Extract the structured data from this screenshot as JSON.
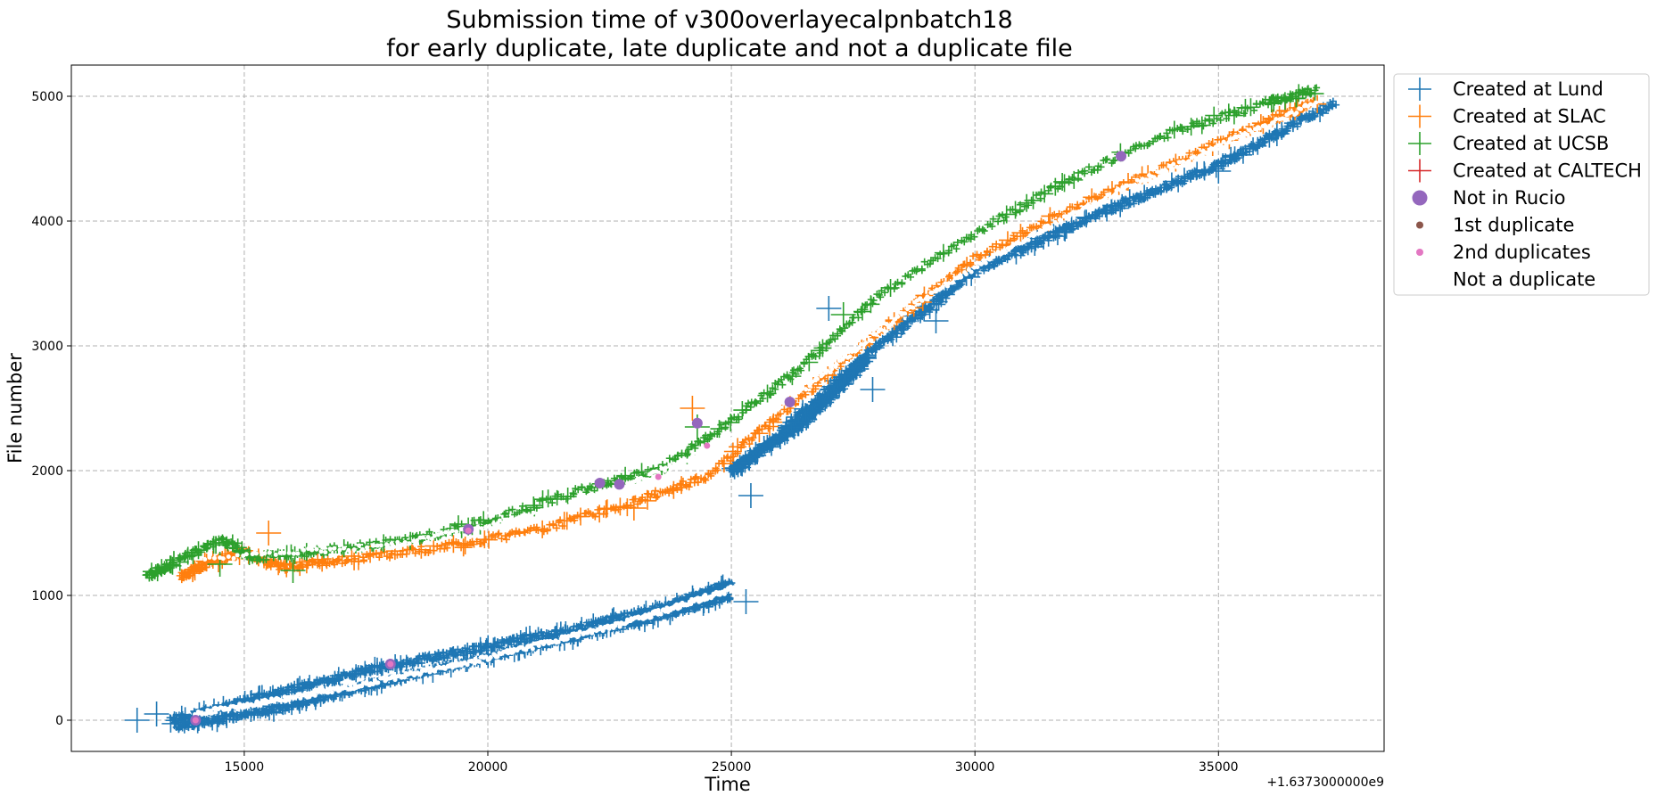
{
  "chart_data": {
    "type": "scatter",
    "title_lines": [
      "Submission time of v300overlayecalpnbatch18",
      "for early duplicate, late duplicate and not a duplicate file"
    ],
    "xlabel": "Time",
    "ylabel": "File number",
    "x_offset_label": "+1.6373000000e9",
    "xlim": [
      11450,
      38400
    ],
    "ylim": [
      -250,
      5250
    ],
    "x_ticks": [
      15000,
      20000,
      25000,
      30000,
      35000
    ],
    "y_ticks": [
      0,
      1000,
      2000,
      3000,
      4000,
      5000
    ],
    "grid": true,
    "legend_position": "outside-top-right",
    "series": [
      {
        "name": "Created at Lund",
        "marker": "plus",
        "color": "#1f77b4",
        "segments": [
          [
            [
              13500,
              0
            ],
            [
              15500,
              200
            ],
            [
              17500,
              400
            ],
            [
              19500,
              550
            ],
            [
              22000,
              750
            ],
            [
              24000,
              950
            ],
            [
              25000,
              1100
            ]
          ],
          [
            [
              13600,
              -50
            ],
            [
              15800,
              100
            ],
            [
              17800,
              300
            ],
            [
              20500,
              550
            ],
            [
              23000,
              780
            ],
            [
              25000,
              1000
            ]
          ],
          [
            [
              25000,
              2000
            ],
            [
              26500,
              2400
            ],
            [
              27800,
              2900
            ]
          ],
          [
            [
              26000,
              2300
            ],
            [
              28000,
              3000
            ],
            [
              30000,
              3600
            ],
            [
              32500,
              4050
            ],
            [
              35000,
              4450
            ],
            [
              37400,
              4950
            ]
          ]
        ],
        "outliers": [
          [
            12800,
            0
          ],
          [
            13200,
            50
          ],
          [
            25300,
            950
          ],
          [
            25400,
            1800
          ],
          [
            27000,
            3300
          ],
          [
            27900,
            2650
          ],
          [
            29200,
            3200
          ],
          [
            35000,
            4400
          ],
          [
            36200,
            4700
          ]
        ]
      },
      {
        "name": "Created at SLAC",
        "marker": "plus",
        "color": "#ff7f0e",
        "segments": [
          [
            [
              13700,
              1150
            ],
            [
              14200,
              1250
            ],
            [
              15000,
              1350
            ],
            [
              15700,
              1230
            ],
            [
              17000,
              1280
            ],
            [
              19000,
              1380
            ],
            [
              21000,
              1520
            ],
            [
              23000,
              1750
            ],
            [
              24500,
              1950
            ],
            [
              26000,
              2450
            ],
            [
              28000,
              3100
            ],
            [
              30000,
              3700
            ],
            [
              32000,
              4100
            ],
            [
              34000,
              4450
            ],
            [
              36000,
              4800
            ],
            [
              37000,
              4950
            ]
          ]
        ],
        "outliers": [
          [
            15500,
            1500
          ],
          [
            23000,
            1700
          ],
          [
            24200,
            2500
          ]
        ]
      },
      {
        "name": "Created at UCSB",
        "marker": "plus",
        "color": "#2ca02c",
        "segments": [
          [
            [
              13000,
              1150
            ],
            [
              13500,
              1250
            ],
            [
              14500,
              1450
            ],
            [
              15200,
              1300
            ],
            [
              16500,
              1350
            ],
            [
              18500,
              1450
            ],
            [
              20000,
              1600
            ],
            [
              22000,
              1850
            ],
            [
              23500,
              2000
            ],
            [
              25000,
              2400
            ],
            [
              26500,
              2850
            ],
            [
              28000,
              3400
            ],
            [
              30000,
              3900
            ],
            [
              32000,
              4350
            ],
            [
              34000,
              4700
            ],
            [
              36000,
              4950
            ],
            [
              37000,
              5050
            ]
          ]
        ],
        "outliers": [
          [
            14500,
            1250
          ],
          [
            16000,
            1200
          ],
          [
            24300,
            2350
          ],
          [
            27300,
            3250
          ]
        ]
      },
      {
        "name": "Created at CALTECH",
        "marker": "plus",
        "color": "#d62728",
        "segments": [],
        "outliers": []
      },
      {
        "name": "Not in Rucio",
        "marker": "circle-large",
        "color": "#9467bd",
        "points": [
          [
            14000,
            0
          ],
          [
            18000,
            450
          ],
          [
            19600,
            1530
          ],
          [
            22300,
            1900
          ],
          [
            22700,
            1890
          ],
          [
            24300,
            2380
          ],
          [
            26200,
            2550
          ],
          [
            33000,
            4520
          ]
        ]
      },
      {
        "name": "1st duplicate",
        "marker": "circle-small",
        "color": "#8c564b",
        "points": []
      },
      {
        "name": "2nd duplicates",
        "marker": "circle-small",
        "color": "#e377c2",
        "points": [
          [
            14000,
            0
          ],
          [
            18000,
            450
          ],
          [
            19600,
            1520
          ],
          [
            23500,
            1950
          ],
          [
            24500,
            2200
          ]
        ]
      },
      {
        "name": "Not a duplicate",
        "marker": "circle-small",
        "color": "#ffffff",
        "segments": [
          [
            [
              14200,
              1300
            ],
            [
              18000,
              1400
            ],
            [
              21000,
              1650
            ],
            [
              23000,
              1900
            ],
            [
              25000,
              2250
            ],
            [
              27000,
              2800
            ],
            [
              29000,
              3400
            ],
            [
              31000,
              3850
            ],
            [
              33000,
              4250
            ],
            [
              35000,
              4600
            ],
            [
              37000,
              4950
            ]
          ],
          [
            [
              14000,
              50
            ],
            [
              17000,
              250
            ],
            [
              20000,
              500
            ],
            [
              23000,
              800
            ],
            [
              25000,
              1050
            ]
          ]
        ]
      }
    ]
  }
}
